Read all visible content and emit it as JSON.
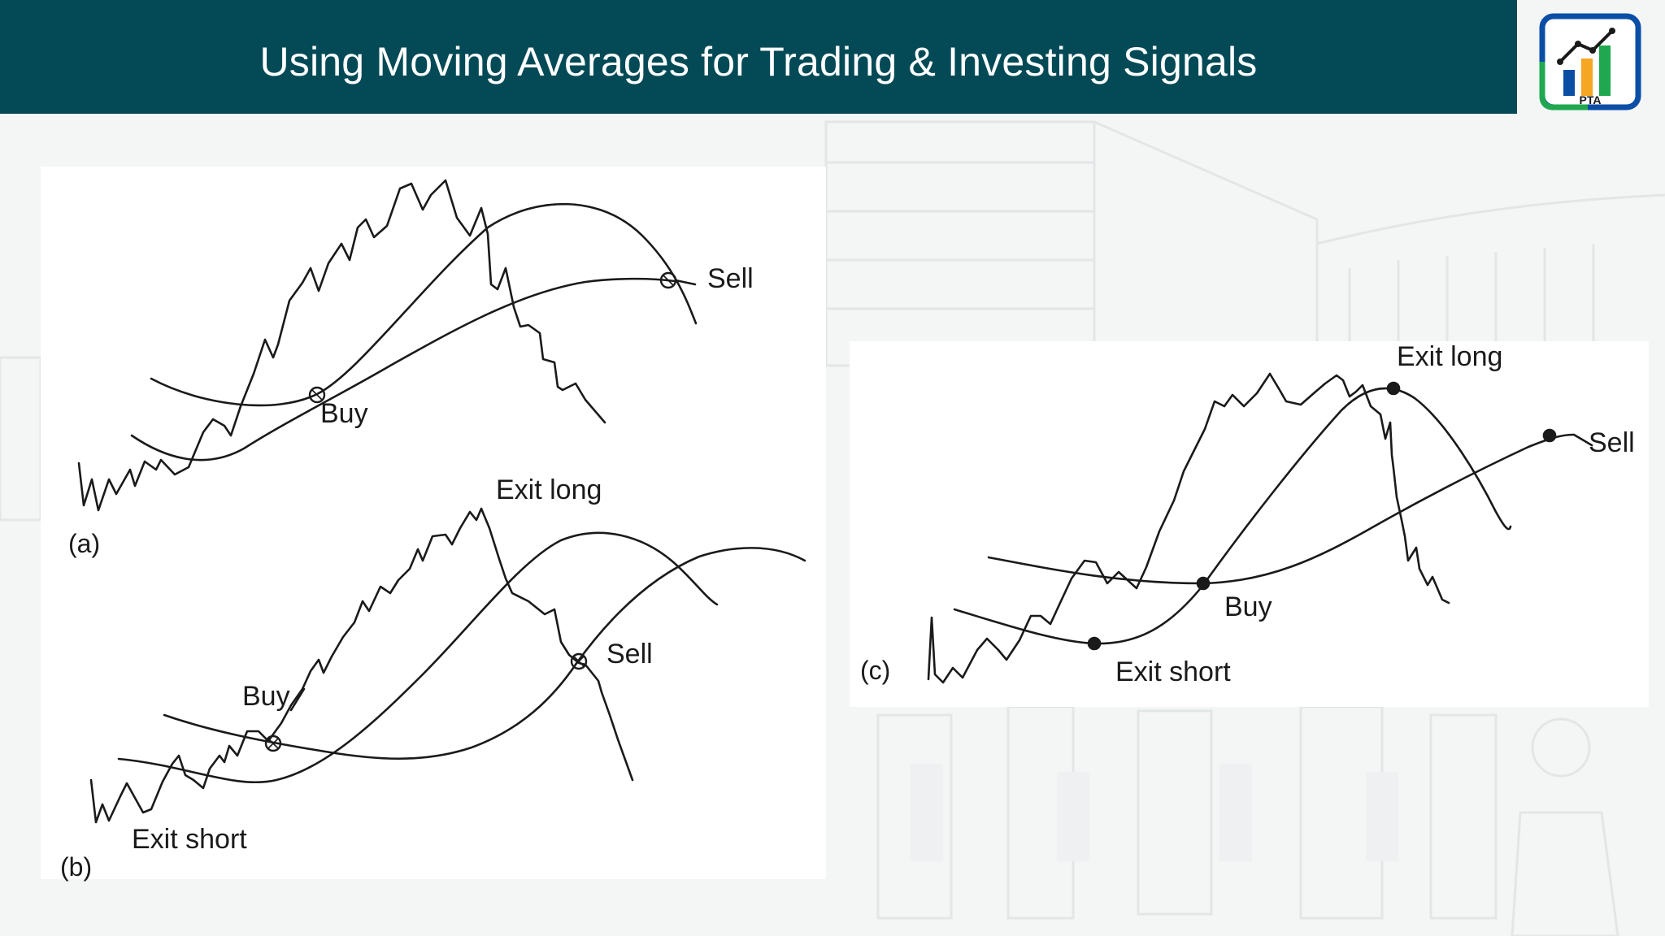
{
  "header": {
    "title": "Using Moving Averages for Trading & Investing Signals",
    "bar_color": "#034a56"
  },
  "logo": {
    "text": "PTA",
    "icon": "chart-logo-icon",
    "colors": [
      "#0a4ea6",
      "#f5a623",
      "#1fa84f"
    ]
  },
  "panels": {
    "a": {
      "label": "(a)",
      "annotations": {
        "buy": "Buy",
        "sell": "Sell"
      }
    },
    "b": {
      "label": "(b)",
      "annotations": {
        "exit_long": "Exit long",
        "buy": "Buy",
        "sell": "Sell",
        "exit_short": "Exit short"
      }
    },
    "c": {
      "label": "(c)",
      "annotations": {
        "exit_long": "Exit long",
        "sell": "Sell",
        "buy": "Buy",
        "exit_short": "Exit short"
      }
    }
  }
}
